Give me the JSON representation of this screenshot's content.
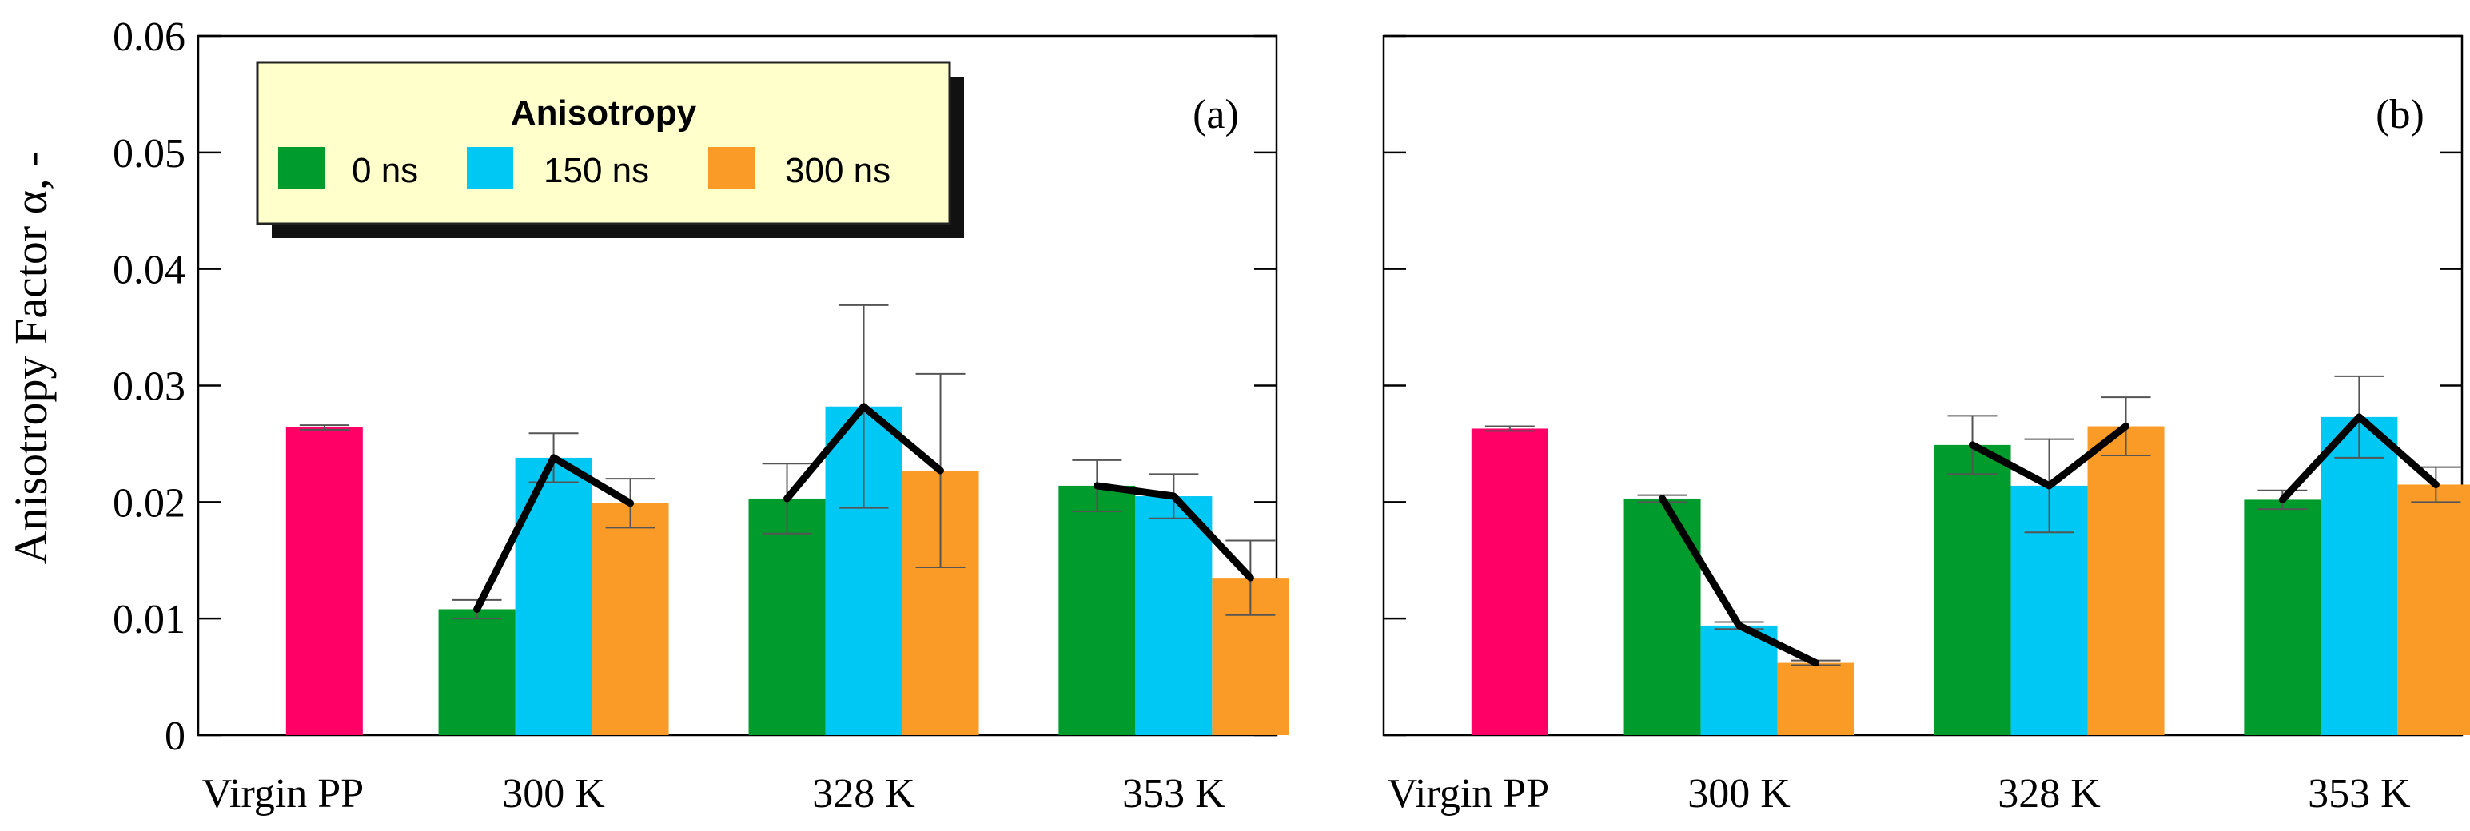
{
  "chart_data": {
    "type": "bar",
    "ylabel": "Anisotropy Factor α, -",
    "ylim": [
      0,
      0.06
    ],
    "yticks": [
      "0",
      "0.01",
      "0.02",
      "0.03",
      "0.04",
      "0.05",
      "0.06"
    ],
    "legend": {
      "title": "Anisotropy",
      "placement": "top-left",
      "entries": [
        {
          "label": "0 ns",
          "color": "#009b2d"
        },
        {
          "label": "150 ns",
          "color": "#00c8f4"
        },
        {
          "label": "300 ns",
          "color": "#fa9b27"
        }
      ]
    },
    "virgin_color": "#ff0066",
    "categories": [
      "Virgin PP",
      "300 K",
      "328 K",
      "353 K"
    ],
    "panels": [
      {
        "panel_label": "(a)",
        "virgin": {
          "value": 0.0264,
          "error": 0.0002
        },
        "groups": [
          {
            "category": "300 K",
            "values": [
              0.0108,
              0.0238,
              0.0199
            ],
            "errors": [
              0.0008,
              0.0021,
              0.0021
            ]
          },
          {
            "category": "328 K",
            "values": [
              0.0203,
              0.0282,
              0.0227
            ],
            "errors": [
              0.003,
              0.0087,
              0.0083
            ]
          },
          {
            "category": "353 K",
            "values": [
              0.0214,
              0.0205,
              0.0135
            ],
            "errors": [
              0.0022,
              0.0019,
              0.0032
            ]
          }
        ]
      },
      {
        "panel_label": "(b)",
        "virgin": {
          "value": 0.0263,
          "error": 0.0002
        },
        "groups": [
          {
            "category": "300 K",
            "values": [
              0.0203,
              0.0094,
              0.0062
            ],
            "errors": [
              0.0003,
              0.0003,
              0.0002
            ]
          },
          {
            "category": "328 K",
            "values": [
              0.0249,
              0.0214,
              0.0265
            ],
            "errors": [
              0.0025,
              0.004,
              0.0025
            ]
          },
          {
            "category": "353 K",
            "values": [
              0.0202,
              0.0273,
              0.0215
            ],
            "errors": [
              0.0008,
              0.0035,
              0.0015
            ]
          }
        ]
      }
    ]
  }
}
